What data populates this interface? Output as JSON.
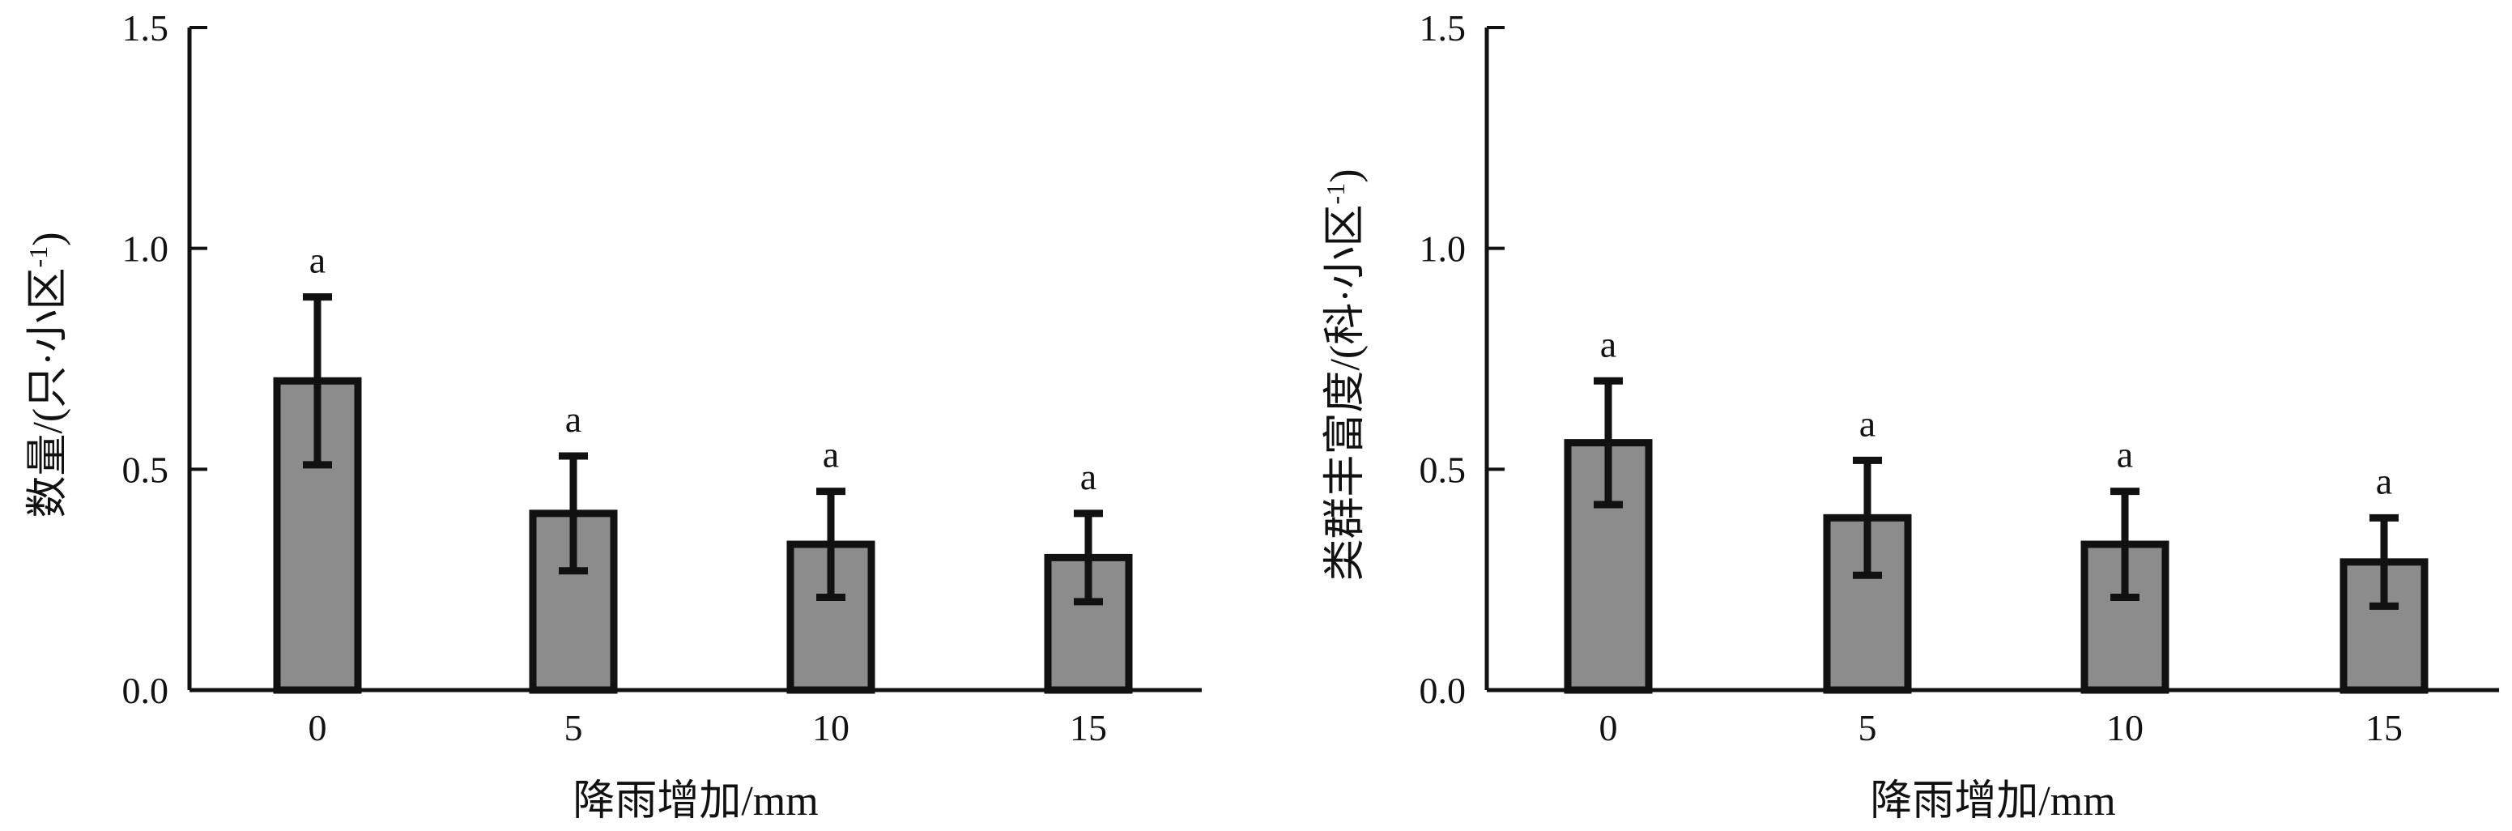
{
  "chart_data": [
    {
      "type": "bar",
      "categories": [
        "0",
        "5",
        "10",
        "15"
      ],
      "values": [
        0.7,
        0.4,
        0.33,
        0.3
      ],
      "error": [
        0.19,
        0.13,
        0.12,
        0.1
      ],
      "significance": [
        "a",
        "a",
        "a",
        "a"
      ],
      "xlabel": "降雨增加/mm",
      "ylabel": "数量/(只·小区",
      "ylabel_sup": "-1",
      "ylabel_close": ")",
      "ylim": [
        0,
        1.5
      ],
      "yticks": [
        "0.0",
        "0.5",
        "1.0",
        "1.5"
      ],
      "bar_color": "#8c8c8c",
      "grid": false
    },
    {
      "type": "bar",
      "categories": [
        "0",
        "5",
        "10",
        "15"
      ],
      "values": [
        0.56,
        0.39,
        0.33,
        0.29
      ],
      "error": [
        0.14,
        0.13,
        0.12,
        0.1
      ],
      "significance": [
        "a",
        "a",
        "a",
        "a"
      ],
      "xlabel": "降雨增加/mm",
      "ylabel": "类群丰富度/(科·小区",
      "ylabel_sup": "-1",
      "ylabel_close": ")",
      "ylim": [
        0,
        1.5
      ],
      "yticks": [
        "0.0",
        "0.5",
        "1.0",
        "1.5"
      ],
      "bar_color": "#8c8c8c",
      "grid": false
    }
  ]
}
